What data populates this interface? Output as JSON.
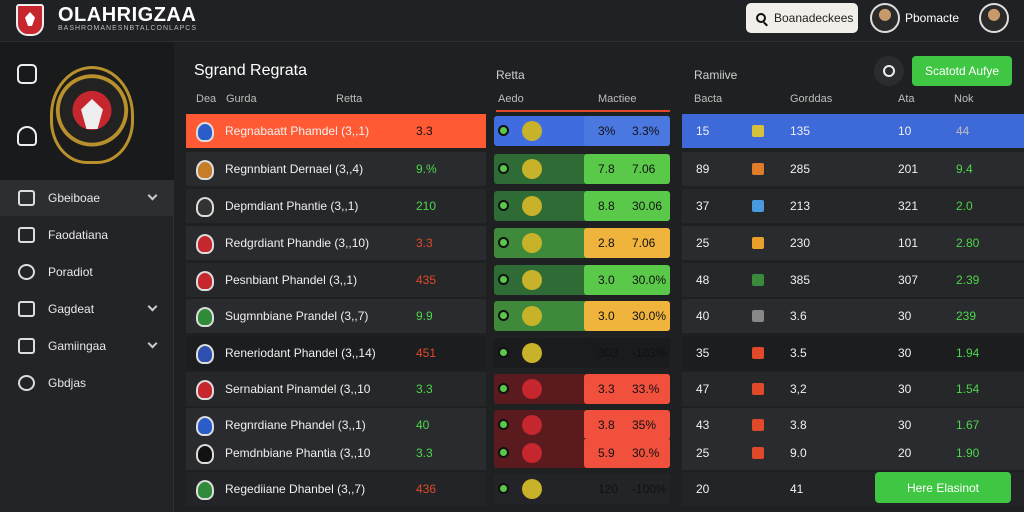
{
  "app": {
    "title": "OLAHRIGZAA",
    "subtitle": "BASHROMANESNBTALCONLAPCS"
  },
  "header": {
    "search_label": "Boanadeckees",
    "username": "Pbomacte"
  },
  "sidebar": {
    "items": [
      {
        "label": "Gbeiboae",
        "icon": "dashboard-icon",
        "expandable": true,
        "active": true
      },
      {
        "label": "Faodatiana",
        "icon": "calendar-icon",
        "expandable": false
      },
      {
        "label": "Poradiot",
        "icon": "clock-icon",
        "expandable": false
      },
      {
        "label": "Gagdeat",
        "icon": "grid-icon",
        "expandable": true
      },
      {
        "label": "Gamiingaa",
        "icon": "trophy-icon",
        "expandable": true
      },
      {
        "label": "Gbdjas",
        "icon": "gear-icon",
        "expandable": false
      }
    ]
  },
  "main": {
    "title": "Sgrand Regrata",
    "section2_label": "Retta",
    "section3_label": "Ramiive",
    "top_button": "Scatotd Aufye",
    "bottom_button": "Here Elasinot",
    "col_left": [
      "Dea",
      "Gurda",
      "Retta"
    ],
    "col_mid": [
      "Aedo",
      "Mactiee"
    ],
    "col_right": [
      "Bacta",
      "Gorddas",
      "Ata",
      "Nok"
    ]
  },
  "rows": [
    {
      "name": "Regnabaatt Phamdel (3,,1)",
      "val": "3.3",
      "val_color": "#111111",
      "chip_a": "3%",
      "chip_b": "3.3%",
      "chip_color": "#4a78e0",
      "mid_color": "#3f6de0",
      "r_a": "15",
      "r_sq": "#d8c13a",
      "r_b": "135",
      "r_c": "10",
      "r_d": "44",
      "r_d_color": "#bdbdbd",
      "row_color": "#ff5a34",
      "right_color": "#3d6ad8",
      "badge_color": "#2a5dc9"
    },
    {
      "name": "Regnnbiant Dernael (3,,4)",
      "val": "9.%",
      "val_color": "#4cd64b",
      "chip_a": "7.8",
      "chip_b": "7.06",
      "chip_color": "#5ac94a",
      "mid_color": "#2f6b34",
      "r_a": "89",
      "r_sq": "#e07b2a",
      "r_b": "285",
      "r_c": "201",
      "r_d": "9.4",
      "r_d_color": "#4cd64b",
      "row_color": "#2a2b2e",
      "right_color": "#2a2b2e",
      "badge_color": "#c77c2a"
    },
    {
      "name": "Depmdiant Phantie (3,,1)",
      "val": "210",
      "val_color": "#4cd64b",
      "chip_a": "8.8",
      "chip_b": "30.06",
      "chip_color": "#5ac94a",
      "mid_color": "#2f6b34",
      "r_a": "37",
      "r_sq": "#4a9ae0",
      "r_b": "213",
      "r_c": "321",
      "r_d": "2.0",
      "r_d_color": "#4cd64b",
      "row_color": "#262729",
      "right_color": "#262729",
      "badge_color": "#333333"
    },
    {
      "name": "Redgrdiant Phandie (3,,10)",
      "val": "3.3",
      "val_color": "#e04a2a",
      "chip_a": "2.8",
      "chip_b": "7.06",
      "chip_color": "#f0b43c",
      "mid_color": "#3f8a3a",
      "r_a": "25",
      "r_sq": "#e8a02a",
      "r_b": "230",
      "r_c": "101",
      "r_d": "2.80",
      "r_d_color": "#4cd64b",
      "row_color": "#2a2b2e",
      "right_color": "#2a2b2e",
      "badge_color": "#c6262e"
    },
    {
      "name": "Pesnbiant Phandel (3,,1)",
      "val": "435",
      "val_color": "#e04a2a",
      "chip_a": "3.0",
      "chip_b": "30.0%",
      "chip_color": "#5ac94a",
      "mid_color": "#2f6b34",
      "r_a": "48",
      "r_sq": "#3a8a3a",
      "r_b": "385",
      "r_c": "307",
      "r_d": "2.39",
      "r_d_color": "#4cd64b",
      "row_color": "#262729",
      "right_color": "#262729",
      "badge_color": "#c6262e"
    },
    {
      "name": "Sugmnbiane Prandel (3,,7)",
      "val": "9.9",
      "val_color": "#4cd64b",
      "chip_a": "3.0",
      "chip_b": "30.0%",
      "chip_color": "#f0b43c",
      "mid_color": "#3f8a3a",
      "r_a": "40",
      "r_sq": "#888888",
      "r_b": "3.6",
      "r_c": "30",
      "r_d": "239",
      "r_d_color": "#4cd64b",
      "row_color": "#2a2b2e",
      "right_color": "#2a2b2e",
      "badge_color": "#2f8a3a"
    },
    {
      "name": "Reneriodant Phandel (3,,14)",
      "val": "451",
      "val_color": "#e04a2a",
      "chip_a": "303",
      "chip_b": "-103%",
      "chip_color": "#1a1b1d",
      "mid_color": "#1a1b1d",
      "r_a": "35",
      "r_sq": "#e04a2a",
      "r_b": "3.5",
      "r_c": "30",
      "r_d": "1.94",
      "r_d_color": "#4cd64b",
      "row_color": "#1c1d1f",
      "right_color": "#1c1d1f",
      "badge_color": "#3050b0"
    },
    {
      "name": "Sernabiant Pinamdel (3,,10",
      "val": "3.3",
      "val_color": "#4cd64b",
      "chip_a": "3.3",
      "chip_b": "33.%",
      "chip_color": "#f0503c",
      "mid_color": "#5a1a1e",
      "r_a": "47",
      "r_sq": "#e04a2a",
      "r_b": "3,2",
      "r_c": "30",
      "r_d": "1.54",
      "r_d_color": "#4cd64b",
      "row_color": "#262729",
      "right_color": "#262729",
      "badge_color": "#c6262e"
    },
    {
      "name": "Regnrdiane Phandel (3,,1)",
      "val": "40",
      "val_color": "#4cd64b",
      "chip_a": "3.8",
      "chip_b": "35%",
      "chip_color": "#f0503c",
      "mid_color": "#5a1a1e",
      "r_a": "43",
      "r_sq": "#e04a2a",
      "r_b": "3.8",
      "r_c": "30",
      "r_d": "1.67",
      "r_d_color": "#4cd64b",
      "row_color": "#2a2b2e",
      "right_color": "#2a2b2e",
      "badge_color": "#2a5dc9"
    },
    {
      "name": "Pemdnbiane Phantia (3,,10",
      "val": "3.3",
      "val_color": "#4cd64b",
      "chip_a": "5.9",
      "chip_b": "30.%",
      "chip_color": "#f0503c",
      "mid_color": "#5a1a1e",
      "r_a": "25",
      "r_sq": "#e04a2a",
      "r_b": "9.0",
      "r_c": "20",
      "r_d": "1.90",
      "r_d_color": "#4cd64b",
      "row_color": "#2a2b2e",
      "right_color": "#2a2b2e",
      "badge_color": "#111111"
    },
    {
      "name": "Regediiane Dhanbel (3,,7)",
      "val": "436",
      "val_color": "#e04a2a",
      "chip_a": "120",
      "chip_b": "-100%",
      "chip_color": "#232427",
      "mid_color": "#232427",
      "r_a": "20",
      "r_sq": "#232427",
      "r_b": "41",
      "r_c": "",
      "r_d": "",
      "r_d_color": "#4cd64b",
      "row_color": "#232427",
      "right_color": "#232427",
      "badge_color": "#2f8a3a"
    }
  ]
}
